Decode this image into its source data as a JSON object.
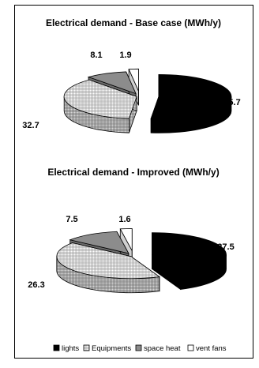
{
  "legend": [
    {
      "label": "lights",
      "fill": "#000000"
    },
    {
      "label": "Equipments",
      "fill": "checker"
    },
    {
      "label": "space heat",
      "fill": "#8c8c8c"
    },
    {
      "label": "vent fans",
      "fill": "#ffffff"
    }
  ],
  "chart_data": [
    {
      "type": "pie",
      "title": "Electrical demand - Base case (MWh/y)",
      "categories": [
        "lights",
        "Equipments",
        "space heat",
        "vent fans"
      ],
      "values": [
        45.7,
        32.7,
        8.1,
        1.9
      ],
      "labels": [
        "45.7",
        "32.7",
        "8.1",
        "1.9"
      ],
      "style": "3d-exploded",
      "legend_position": "bottom"
    },
    {
      "type": "pie",
      "title": "Electrical demand - Improved (MWh/y)",
      "categories": [
        "lights",
        "Equipments",
        "space heat",
        "vent fans"
      ],
      "values": [
        27.5,
        26.3,
        7.5,
        1.6
      ],
      "labels": [
        "27.5",
        "26.3",
        "7.5",
        "1.6"
      ],
      "style": "3d-exploded",
      "legend_position": "bottom"
    }
  ]
}
